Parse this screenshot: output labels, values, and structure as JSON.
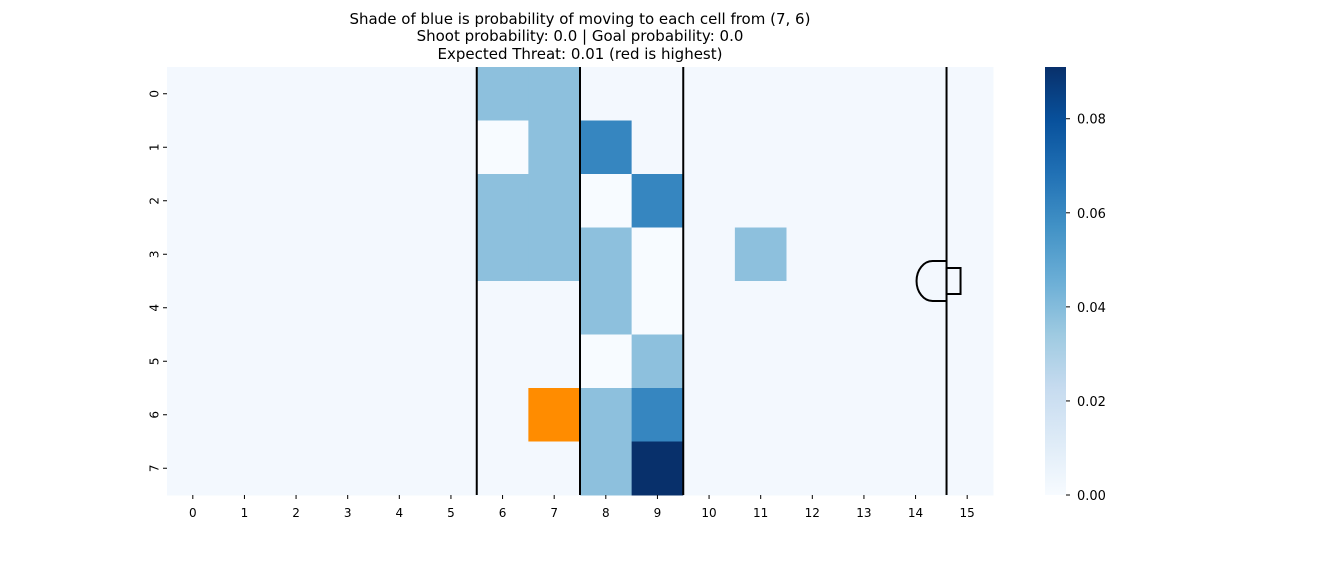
{
  "chart_data": {
    "type": "heatmap",
    "title": [
      "Shade of blue is probability of moving to each cell from (7, 6)",
      "Shoot probability: 0.0 | Goal probability: 0.0",
      "Expected Threat: 0.01 (red is highest)"
    ],
    "x_ticks": [
      "0",
      "1",
      "2",
      "3",
      "4",
      "5",
      "6",
      "7",
      "8",
      "9",
      "10",
      "11",
      "12",
      "13",
      "14",
      "15"
    ],
    "y_ticks": [
      "0",
      "1",
      "2",
      "3",
      "4",
      "5",
      "6",
      "7"
    ],
    "colormap": "Blues",
    "colorbar": {
      "range": [
        0,
        0.091
      ],
      "ticks": [
        "0.00",
        "0.02",
        "0.04",
        "0.06",
        "0.08"
      ],
      "tick_values": [
        0,
        0.02,
        0.04,
        0.06,
        0.08
      ]
    },
    "default_value": 0.002,
    "cells": [
      {
        "row": 0,
        "col": 6,
        "value": 0.038
      },
      {
        "row": 0,
        "col": 7,
        "value": 0.038
      },
      {
        "row": 1,
        "col": 6,
        "value": 0.0
      },
      {
        "row": 1,
        "col": 7,
        "value": 0.038
      },
      {
        "row": 1,
        "col": 8,
        "value": 0.061
      },
      {
        "row": 2,
        "col": 6,
        "value": 0.038
      },
      {
        "row": 2,
        "col": 7,
        "value": 0.038
      },
      {
        "row": 2,
        "col": 8,
        "value": 0.0
      },
      {
        "row": 2,
        "col": 9,
        "value": 0.061
      },
      {
        "row": 3,
        "col": 6,
        "value": 0.038
      },
      {
        "row": 3,
        "col": 7,
        "value": 0.038
      },
      {
        "row": 3,
        "col": 8,
        "value": 0.038
      },
      {
        "row": 3,
        "col": 9,
        "value": 0.0
      },
      {
        "row": 3,
        "col": 11,
        "value": 0.038
      },
      {
        "row": 4,
        "col": 8,
        "value": 0.038
      },
      {
        "row": 4,
        "col": 9,
        "value": 0.0
      },
      {
        "row": 5,
        "col": 8,
        "value": 0.0
      },
      {
        "row": 5,
        "col": 9,
        "value": 0.038
      },
      {
        "row": 6,
        "col": 8,
        "value": 0.038
      },
      {
        "row": 6,
        "col": 9,
        "value": 0.061
      },
      {
        "row": 7,
        "col": 8,
        "value": 0.038
      },
      {
        "row": 7,
        "col": 9,
        "value": 0.091
      }
    ],
    "highlight": {
      "row": 6,
      "col": 7,
      "color": "#ff8c00"
    },
    "pitch_lines_x": [
      5.5,
      7.5,
      9.5,
      14.6
    ]
  }
}
